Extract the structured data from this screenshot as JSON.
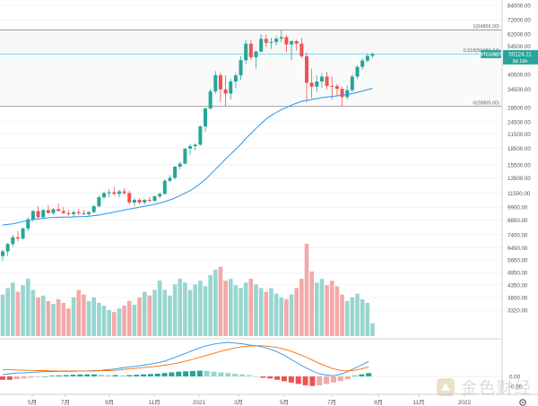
{
  "chart_data": {
    "type": "candlestick",
    "symbol": "BTCUSDT",
    "price_label": "50124.11",
    "timer_label": "3d 16h",
    "fib_levels": [
      {
        "label": "1(64856.00)",
        "price": 64856
      },
      {
        "label": "0.618(50183.74)",
        "price": 50183.74
      },
      {
        "label": "0(28805.00)",
        "price": 28805
      }
    ],
    "price_axis": {
      "scale": "log",
      "range": [
        2700,
        84000
      ],
      "ticks": [
        "84000.00",
        "72000.00",
        "62000.00",
        "54500.00",
        "40500.00",
        "34500.00",
        "28500.00",
        "24500.00",
        "21500.00",
        "18500.00",
        "15500.00",
        "13500.00",
        "11500.00",
        "9900.00",
        "8650.00",
        "7400.00",
        "6450.00",
        "5650.00",
        "4950.00",
        "4350.00",
        "3800.00",
        "3320.00"
      ]
    },
    "macd_axis": {
      "ticks": [
        "0.00",
        "-0.00"
      ]
    },
    "time_axis": {
      "labels": [
        "5月",
        "7月",
        "9月",
        "11月",
        "2021",
        "3月",
        "5月",
        "7月",
        "9月",
        "11月",
        "2022"
      ]
    },
    "candles": [
      {
        "o": 5900,
        "h": 6300,
        "l": 5600,
        "c": 6200
      },
      {
        "o": 6200,
        "h": 6800,
        "l": 5900,
        "c": 6700
      },
      {
        "o": 6700,
        "h": 7400,
        "l": 6500,
        "c": 7200
      },
      {
        "o": 7200,
        "h": 7700,
        "l": 6900,
        "c": 7100
      },
      {
        "o": 7100,
        "h": 8000,
        "l": 7000,
        "c": 7900
      },
      {
        "o": 7900,
        "h": 8900,
        "l": 7700,
        "c": 8700
      },
      {
        "o": 8700,
        "h": 9600,
        "l": 8500,
        "c": 9500
      },
      {
        "o": 9500,
        "h": 10000,
        "l": 8700,
        "c": 8900
      },
      {
        "o": 8900,
        "h": 9700,
        "l": 8800,
        "c": 9600
      },
      {
        "o": 9600,
        "h": 10100,
        "l": 9400,
        "c": 9300
      },
      {
        "o": 9300,
        "h": 9800,
        "l": 9100,
        "c": 9700
      },
      {
        "o": 9700,
        "h": 10300,
        "l": 9500,
        "c": 9500
      },
      {
        "o": 9500,
        "h": 9900,
        "l": 9200,
        "c": 9300
      },
      {
        "o": 9300,
        "h": 9600,
        "l": 9000,
        "c": 9200
      },
      {
        "o": 9200,
        "h": 9500,
        "l": 8900,
        "c": 9400
      },
      {
        "o": 9400,
        "h": 9700,
        "l": 9100,
        "c": 9300
      },
      {
        "o": 9300,
        "h": 9600,
        "l": 9100,
        "c": 9200
      },
      {
        "o": 9200,
        "h": 9500,
        "l": 9000,
        "c": 9400
      },
      {
        "o": 9400,
        "h": 10100,
        "l": 9300,
        "c": 10000
      },
      {
        "o": 10000,
        "h": 11200,
        "l": 9900,
        "c": 11000
      },
      {
        "o": 11000,
        "h": 11700,
        "l": 10800,
        "c": 11500
      },
      {
        "o": 11500,
        "h": 12000,
        "l": 11000,
        "c": 11600
      },
      {
        "o": 11600,
        "h": 12300,
        "l": 11200,
        "c": 11400
      },
      {
        "o": 11400,
        "h": 11900,
        "l": 11000,
        "c": 11700
      },
      {
        "o": 11700,
        "h": 12100,
        "l": 11300,
        "c": 11500
      },
      {
        "o": 11500,
        "h": 11800,
        "l": 10200,
        "c": 10400
      },
      {
        "o": 10400,
        "h": 10900,
        "l": 10000,
        "c": 10700
      },
      {
        "o": 10700,
        "h": 10900,
        "l": 10200,
        "c": 10400
      },
      {
        "o": 10400,
        "h": 10800,
        "l": 10200,
        "c": 10700
      },
      {
        "o": 10700,
        "h": 11000,
        "l": 10400,
        "c": 10600
      },
      {
        "o": 10600,
        "h": 11200,
        "l": 10500,
        "c": 11100
      },
      {
        "o": 11100,
        "h": 11600,
        "l": 10900,
        "c": 11400
      },
      {
        "o": 11400,
        "h": 13300,
        "l": 11300,
        "c": 13100
      },
      {
        "o": 13100,
        "h": 13900,
        "l": 12900,
        "c": 13500
      },
      {
        "o": 13500,
        "h": 15300,
        "l": 13300,
        "c": 15200
      },
      {
        "o": 15200,
        "h": 16000,
        "l": 14800,
        "c": 15700
      },
      {
        "o": 15700,
        "h": 18500,
        "l": 15600,
        "c": 18400
      },
      {
        "o": 18400,
        "h": 19400,
        "l": 17300,
        "c": 18900
      },
      {
        "o": 18900,
        "h": 19500,
        "l": 18100,
        "c": 19200
      },
      {
        "o": 19200,
        "h": 23500,
        "l": 19000,
        "c": 23300
      },
      {
        "o": 23300,
        "h": 28400,
        "l": 22000,
        "c": 28200
      },
      {
        "o": 28200,
        "h": 34600,
        "l": 27800,
        "c": 33800
      },
      {
        "o": 33800,
        "h": 41900,
        "l": 33000,
        "c": 40100
      },
      {
        "o": 40100,
        "h": 41300,
        "l": 30200,
        "c": 34500
      },
      {
        "o": 34500,
        "h": 40000,
        "l": 29000,
        "c": 33000
      },
      {
        "o": 33000,
        "h": 38500,
        "l": 31000,
        "c": 37500
      },
      {
        "o": 37500,
        "h": 41000,
        "l": 35000,
        "c": 40000
      },
      {
        "o": 40000,
        "h": 49000,
        "l": 38000,
        "c": 47000
      },
      {
        "o": 47000,
        "h": 58000,
        "l": 45000,
        "c": 56000
      },
      {
        "o": 56000,
        "h": 58300,
        "l": 47000,
        "c": 48500
      },
      {
        "o": 48500,
        "h": 52000,
        "l": 43000,
        "c": 51500
      },
      {
        "o": 51500,
        "h": 61800,
        "l": 51000,
        "c": 58900
      },
      {
        "o": 58900,
        "h": 61500,
        "l": 54000,
        "c": 56500
      },
      {
        "o": 56500,
        "h": 59500,
        "l": 53000,
        "c": 57000
      },
      {
        "o": 57000,
        "h": 60500,
        "l": 55000,
        "c": 59000
      },
      {
        "o": 59000,
        "h": 64800,
        "l": 57000,
        "c": 60000
      },
      {
        "o": 60000,
        "h": 61500,
        "l": 51000,
        "c": 55500
      },
      {
        "o": 55500,
        "h": 58000,
        "l": 47000,
        "c": 57500
      },
      {
        "o": 57500,
        "h": 58500,
        "l": 52000,
        "c": 56000
      },
      {
        "o": 56000,
        "h": 59500,
        "l": 48000,
        "c": 49000
      },
      {
        "o": 49000,
        "h": 51000,
        "l": 30000,
        "c": 37000
      },
      {
        "o": 37000,
        "h": 43000,
        "l": 31500,
        "c": 35500
      },
      {
        "o": 35500,
        "h": 40000,
        "l": 33500,
        "c": 37500
      },
      {
        "o": 37500,
        "h": 41000,
        "l": 35000,
        "c": 39500
      },
      {
        "o": 39500,
        "h": 41500,
        "l": 34500,
        "c": 35800
      },
      {
        "o": 35800,
        "h": 39500,
        "l": 31000,
        "c": 35700
      },
      {
        "o": 35700,
        "h": 36500,
        "l": 32000,
        "c": 34700
      },
      {
        "o": 34700,
        "h": 35500,
        "l": 29000,
        "c": 31800
      },
      {
        "o": 31800,
        "h": 36000,
        "l": 31000,
        "c": 34200
      },
      {
        "o": 34200,
        "h": 40500,
        "l": 33500,
        "c": 39500
      },
      {
        "o": 39500,
        "h": 44500,
        "l": 38500,
        "c": 43800
      },
      {
        "o": 43800,
        "h": 48000,
        "l": 42500,
        "c": 46800
      },
      {
        "o": 46800,
        "h": 50500,
        "l": 46000,
        "c": 49200
      },
      {
        "o": 49200,
        "h": 51000,
        "l": 48000,
        "c": 50124
      }
    ],
    "volume": [
      0.45,
      0.52,
      0.58,
      0.48,
      0.55,
      0.62,
      0.5,
      0.42,
      0.44,
      0.38,
      0.35,
      0.4,
      0.36,
      0.3,
      0.42,
      0.5,
      0.45,
      0.38,
      0.42,
      0.36,
      0.33,
      0.28,
      0.26,
      0.3,
      0.33,
      0.38,
      0.34,
      0.42,
      0.48,
      0.44,
      0.5,
      0.6,
      0.5,
      0.44,
      0.56,
      0.62,
      0.58,
      0.5,
      0.56,
      0.6,
      0.54,
      0.66,
      0.72,
      0.75,
      0.6,
      0.62,
      0.55,
      0.52,
      0.58,
      0.62,
      0.56,
      0.52,
      0.48,
      0.52,
      0.46,
      0.42,
      0.4,
      0.45,
      0.52,
      0.62,
      1.0,
      0.7,
      0.58,
      0.62,
      0.55,
      0.6,
      0.54,
      0.45,
      0.38,
      0.42,
      0.46,
      0.4,
      0.36,
      0.14
    ],
    "ma": [
      8200,
      8250,
      8300,
      8400,
      8500,
      8600,
      8700,
      8750,
      8800,
      8850,
      8880,
      8900,
      8910,
      8920,
      8930,
      8950,
      8970,
      9000,
      9050,
      9100,
      9200,
      9300,
      9400,
      9500,
      9600,
      9700,
      9800,
      9900,
      10000,
      10100,
      10200,
      10350,
      10500,
      10700,
      10900,
      11200,
      11500,
      11800,
      12200,
      12700,
      13300,
      14000,
      14800,
      15600,
      16500,
      17400,
      18300,
      19300,
      20500,
      21600,
      22800,
      24000,
      25200,
      26200,
      27000,
      27800,
      28500,
      29200,
      29800,
      30400,
      30700,
      31000,
      31300,
      31600,
      31800,
      32000,
      32200,
      32400,
      32700,
      33000,
      33400,
      33900,
      34400,
      34900
    ],
    "macd": [
      0.05,
      0.08,
      0.1,
      0.1,
      0.12,
      0.13,
      0.14,
      0.14,
      0.15,
      0.15,
      0.15,
      0.16,
      0.16,
      0.17,
      0.18,
      0.2,
      0.22,
      0.25,
      0.28,
      0.3,
      0.33,
      0.36,
      0.4,
      0.45,
      0.52,
      0.6,
      0.68,
      0.76,
      0.84,
      0.9,
      0.95,
      0.98,
      1.0,
      0.98,
      0.96,
      0.92,
      0.9,
      0.86,
      0.8,
      0.72,
      0.62,
      0.5,
      0.38,
      0.26,
      0.16,
      0.08,
      0.04,
      0.02,
      0.06,
      0.14,
      0.24,
      0.34,
      0.44
    ],
    "signal": [
      0.2,
      0.2,
      0.19,
      0.18,
      0.18,
      0.17,
      0.17,
      0.16,
      0.16,
      0.16,
      0.16,
      0.16,
      0.16,
      0.16,
      0.17,
      0.17,
      0.18,
      0.2,
      0.22,
      0.24,
      0.26,
      0.28,
      0.3,
      0.33,
      0.36,
      0.4,
      0.45,
      0.5,
      0.56,
      0.62,
      0.68,
      0.74,
      0.79,
      0.84,
      0.87,
      0.89,
      0.9,
      0.9,
      0.88,
      0.85,
      0.8,
      0.74,
      0.66,
      0.58,
      0.48,
      0.38,
      0.3,
      0.22,
      0.18,
      0.16,
      0.18,
      0.22,
      0.28
    ],
    "hist": [
      -0.1,
      -0.1,
      -0.08,
      -0.06,
      -0.04,
      -0.02,
      0.0,
      0.02,
      0.03,
      0.04,
      0.05,
      0.06,
      0.06,
      0.06,
      0.05,
      0.04,
      0.04,
      0.03,
      0.04,
      0.05,
      0.06,
      0.07,
      0.08,
      0.1,
      0.12,
      0.14,
      0.15,
      0.16,
      0.17,
      0.16,
      0.14,
      0.12,
      0.1,
      0.08,
      0.06,
      0.04,
      0.0,
      -0.04,
      -0.06,
      -0.1,
      -0.14,
      -0.18,
      -0.22,
      -0.26,
      -0.28,
      -0.26,
      -0.22,
      -0.18,
      -0.14,
      -0.08,
      0.02,
      0.06,
      0.1
    ],
    "colors": {
      "up": "#26a69a",
      "down": "#ef5350",
      "up_light": "#98d6cf",
      "down_light": "#f3a9a8",
      "ma": "#2196f3",
      "macd": "#2196f3",
      "signal": "#ff6d00",
      "grid": "#ececec",
      "axis_text": "#555555"
    }
  }
}
